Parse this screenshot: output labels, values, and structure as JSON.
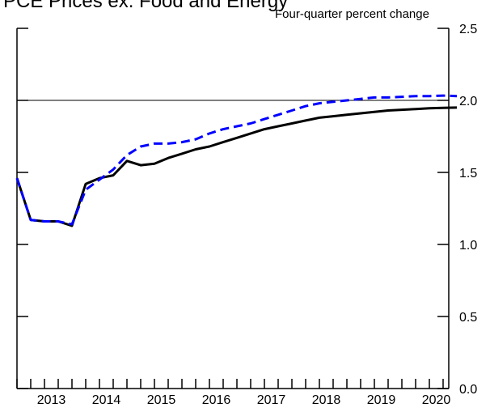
{
  "chart_data": {
    "type": "line",
    "title": "PCE Prices ex. Food and Energy",
    "units_label": "Four-quarter percent change",
    "x_tick_labels": [
      "2013",
      "2014",
      "2015",
      "2016",
      "2017",
      "2018",
      "2019",
      "2020"
    ],
    "y_tick_labels": [
      "0.0",
      "0.5",
      "1.0",
      "1.5",
      "2.0",
      "2.5"
    ],
    "ylim": [
      0,
      2.5
    ],
    "grid": false,
    "reference_line": 2.0,
    "quarters": [
      "2012:Q4",
      "2013:Q1",
      "2013:Q2",
      "2013:Q3",
      "2013:Q4",
      "2014:Q1",
      "2014:Q2",
      "2014:Q3",
      "2014:Q4",
      "2015:Q1",
      "2015:Q2",
      "2015:Q3",
      "2015:Q4",
      "2016:Q1",
      "2016:Q2",
      "2016:Q3",
      "2016:Q4",
      "2017:Q1",
      "2017:Q2",
      "2017:Q3",
      "2017:Q4",
      "2018:Q1",
      "2018:Q2",
      "2018:Q3",
      "2018:Q4",
      "2019:Q1",
      "2019:Q2",
      "2019:Q3",
      "2019:Q4",
      "2020:Q1",
      "2020:Q2",
      "2020:Q3",
      "2020:Q4"
    ],
    "series": [
      {
        "style": "solid",
        "color": "#000000",
        "values": [
          1.46,
          1.17,
          1.16,
          1.16,
          1.13,
          1.42,
          1.46,
          1.48,
          1.58,
          1.55,
          1.56,
          1.6,
          1.63,
          1.66,
          1.68,
          1.71,
          1.74,
          1.77,
          1.8,
          1.82,
          1.84,
          1.86,
          1.88,
          1.89,
          1.9,
          1.91,
          1.92,
          1.93,
          1.935,
          1.94,
          1.945,
          1.948,
          1.95
        ]
      },
      {
        "style": "dashed",
        "color": "#0000ff",
        "values": [
          1.46,
          1.17,
          1.16,
          1.16,
          1.14,
          1.38,
          1.45,
          1.52,
          1.62,
          1.68,
          1.7,
          1.7,
          1.71,
          1.73,
          1.77,
          1.8,
          1.82,
          1.84,
          1.87,
          1.9,
          1.93,
          1.96,
          1.98,
          1.99,
          2.0,
          2.01,
          2.02,
          2.02,
          2.025,
          2.03,
          2.03,
          2.033,
          2.03
        ]
      }
    ]
  }
}
